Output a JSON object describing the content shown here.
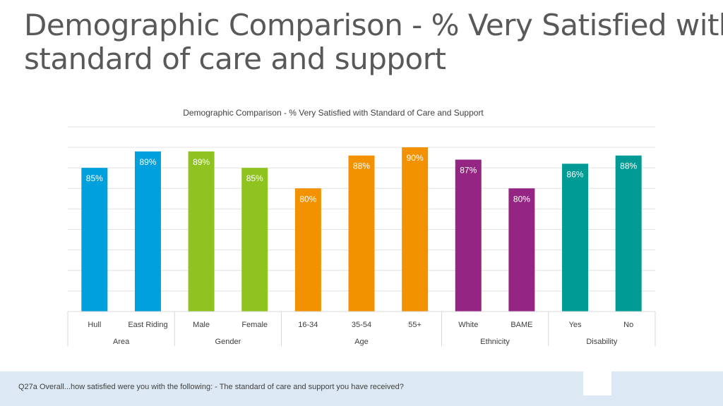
{
  "slide": {
    "title_line1": "Demographic Comparison - % Very Satisfied with",
    "title_line2": "standard of care and support"
  },
  "footer": {
    "question": "Q27a Overall...how satisfied were you with the following: - The standard of care and support you have received?"
  },
  "colors": {
    "Area": "#00a0dc",
    "Gender": "#8fc31f",
    "Age": "#f39200",
    "Ethnicity": "#952582",
    "Disability": "#009b94",
    "grid": "#e0e0e0",
    "text": "#595959"
  },
  "chart_data": {
    "type": "bar",
    "title": "Demographic Comparison - % Very Satisfied with Standard of Care and Support",
    "categories": [
      "Hull",
      "East Riding",
      "Male",
      "Female",
      "16-34",
      "35-54",
      "55+",
      "White",
      "BAME",
      "Yes",
      "No"
    ],
    "groups": [
      {
        "name": "Area",
        "categories": [
          "Hull",
          "East Riding"
        ]
      },
      {
        "name": "Gender",
        "categories": [
          "Male",
          "Female"
        ]
      },
      {
        "name": "Age",
        "categories": [
          "16-34",
          "35-54",
          "55+"
        ]
      },
      {
        "name": "Ethnicity",
        "categories": [
          "White",
          "BAME"
        ]
      },
      {
        "name": "Disability",
        "categories": [
          "Yes",
          "No"
        ]
      }
    ],
    "values": [
      85,
      89,
      89,
      85,
      80,
      88,
      90,
      87,
      80,
      86,
      88
    ],
    "labels": [
      "85%",
      "89%",
      "89%",
      "85%",
      "80%",
      "88%",
      "90%",
      "87%",
      "80%",
      "86%",
      "88%"
    ],
    "ylim": [
      0,
      100
    ],
    "xlabel": "",
    "ylabel": "",
    "grid": true,
    "legend": "none"
  }
}
